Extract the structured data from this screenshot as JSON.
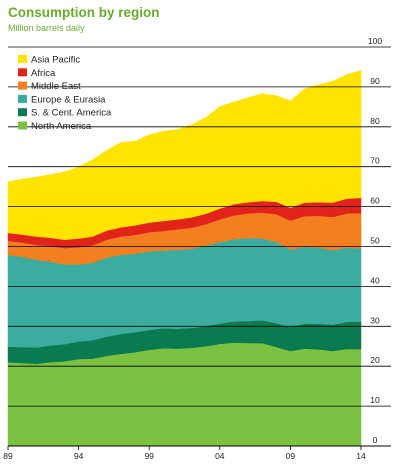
{
  "chart_data": {
    "type": "area",
    "stacked": true,
    "title": "Consumption by region",
    "subtitle": "Million barrels daily",
    "x": [
      1989,
      1990,
      1991,
      1992,
      1993,
      1994,
      1995,
      1996,
      1997,
      1998,
      1999,
      2000,
      2001,
      2002,
      2003,
      2004,
      2005,
      2006,
      2007,
      2008,
      2009,
      2010,
      2011,
      2012,
      2013,
      2014
    ],
    "x_tick_labels": [
      "89",
      "94",
      "99",
      "04",
      "09",
      "14"
    ],
    "x_tick_values": [
      1989,
      1994,
      1999,
      2004,
      2009,
      2014
    ],
    "y_tick_values": [
      0,
      10,
      20,
      30,
      40,
      50,
      60,
      70,
      80,
      90,
      100
    ],
    "ylim": [
      0,
      100
    ],
    "grid": true,
    "y_axis_position": "right",
    "legend_position": "top-left",
    "series": [
      {
        "name": "North America",
        "color": "#7cc242",
        "values": [
          21.0,
          20.8,
          20.6,
          21.0,
          21.2,
          21.8,
          21.9,
          22.6,
          23.1,
          23.5,
          24.1,
          24.5,
          24.4,
          24.6,
          25.0,
          25.6,
          25.9,
          25.8,
          25.8,
          24.8,
          23.8,
          24.4,
          24.2,
          23.8,
          24.3,
          24.3
        ]
      },
      {
        "name": "S. & Cent. America",
        "color": "#0a7a4f",
        "values": [
          3.9,
          4.0,
          4.1,
          4.2,
          4.3,
          4.4,
          4.6,
          4.8,
          5.0,
          5.0,
          5.0,
          5.0,
          5.0,
          5.0,
          5.0,
          5.1,
          5.3,
          5.5,
          5.7,
          6.0,
          6.0,
          6.3,
          6.4,
          6.6,
          6.8,
          6.9
        ]
      },
      {
        "name": "Europe & Eurasia",
        "color": "#3aada0",
        "values": [
          23.0,
          22.6,
          22.0,
          21.0,
          20.0,
          19.3,
          19.4,
          19.8,
          19.8,
          19.7,
          19.7,
          19.5,
          19.8,
          19.8,
          20.2,
          20.4,
          20.6,
          20.8,
          20.5,
          20.3,
          19.4,
          19.2,
          19.1,
          18.7,
          18.6,
          18.3
        ]
      },
      {
        "name": "Middle East",
        "color": "#f47f20",
        "values": [
          3.5,
          3.6,
          3.7,
          3.9,
          4.1,
          4.3,
          4.4,
          4.5,
          4.6,
          4.7,
          4.8,
          4.9,
          5.1,
          5.3,
          5.4,
          5.7,
          6.0,
          6.2,
          6.5,
          7.0,
          7.3,
          7.7,
          8.0,
          8.3,
          8.6,
          8.9
        ]
      },
      {
        "name": "Africa",
        "color": "#e2231a",
        "values": [
          2.0,
          2.0,
          2.1,
          2.1,
          2.1,
          2.2,
          2.2,
          2.3,
          2.3,
          2.4,
          2.4,
          2.5,
          2.5,
          2.6,
          2.6,
          2.7,
          2.8,
          2.8,
          2.9,
          3.1,
          3.2,
          3.4,
          3.4,
          3.6,
          3.7,
          3.8
        ]
      },
      {
        "name": "Asia Pacific",
        "color": "#ffe400",
        "values": [
          12.8,
          13.9,
          14.9,
          15.8,
          17.0,
          17.9,
          19.3,
          20.1,
          21.3,
          21.1,
          22.0,
          22.5,
          22.5,
          23.2,
          24.1,
          25.6,
          25.6,
          26.2,
          26.9,
          26.6,
          26.8,
          28.5,
          29.4,
          30.4,
          31.1,
          31.9
        ]
      }
    ]
  }
}
